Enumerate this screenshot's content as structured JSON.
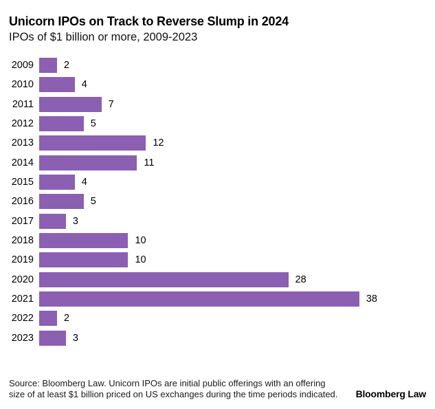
{
  "header": {
    "title": "Unicorn IPOs on Track to Reverse Slump in 2024",
    "subtitle": "IPOs of $1 billion or more, 2009-2023"
  },
  "chart_data": {
    "type": "bar",
    "orientation": "horizontal",
    "title": "Unicorn IPOs on Track to Reverse Slump in 2024",
    "subtitle": "IPOs of $1 billion or more, 2009-2023",
    "categories": [
      "2009",
      "2010",
      "2011",
      "2012",
      "2013",
      "2014",
      "2015",
      "2016",
      "2017",
      "2018",
      "2019",
      "2020",
      "2021",
      "2022",
      "2023"
    ],
    "values": [
      2,
      4,
      7,
      5,
      12,
      11,
      4,
      5,
      3,
      10,
      10,
      28,
      38,
      2,
      3
    ],
    "xlabel": "",
    "ylabel": "",
    "xlim": [
      0,
      38
    ],
    "value_labels_shown": true,
    "grid": false,
    "legend": false,
    "bar_color": "#8B5FB2"
  },
  "footer": {
    "source_lines": [
      "Source: Bloomberg Law. Unicorn IPOs are initial public offerings with an offering",
      "size of at least $1 billion priced on US exchanges during the time periods indicated."
    ],
    "brand": "Bloomberg Law"
  }
}
